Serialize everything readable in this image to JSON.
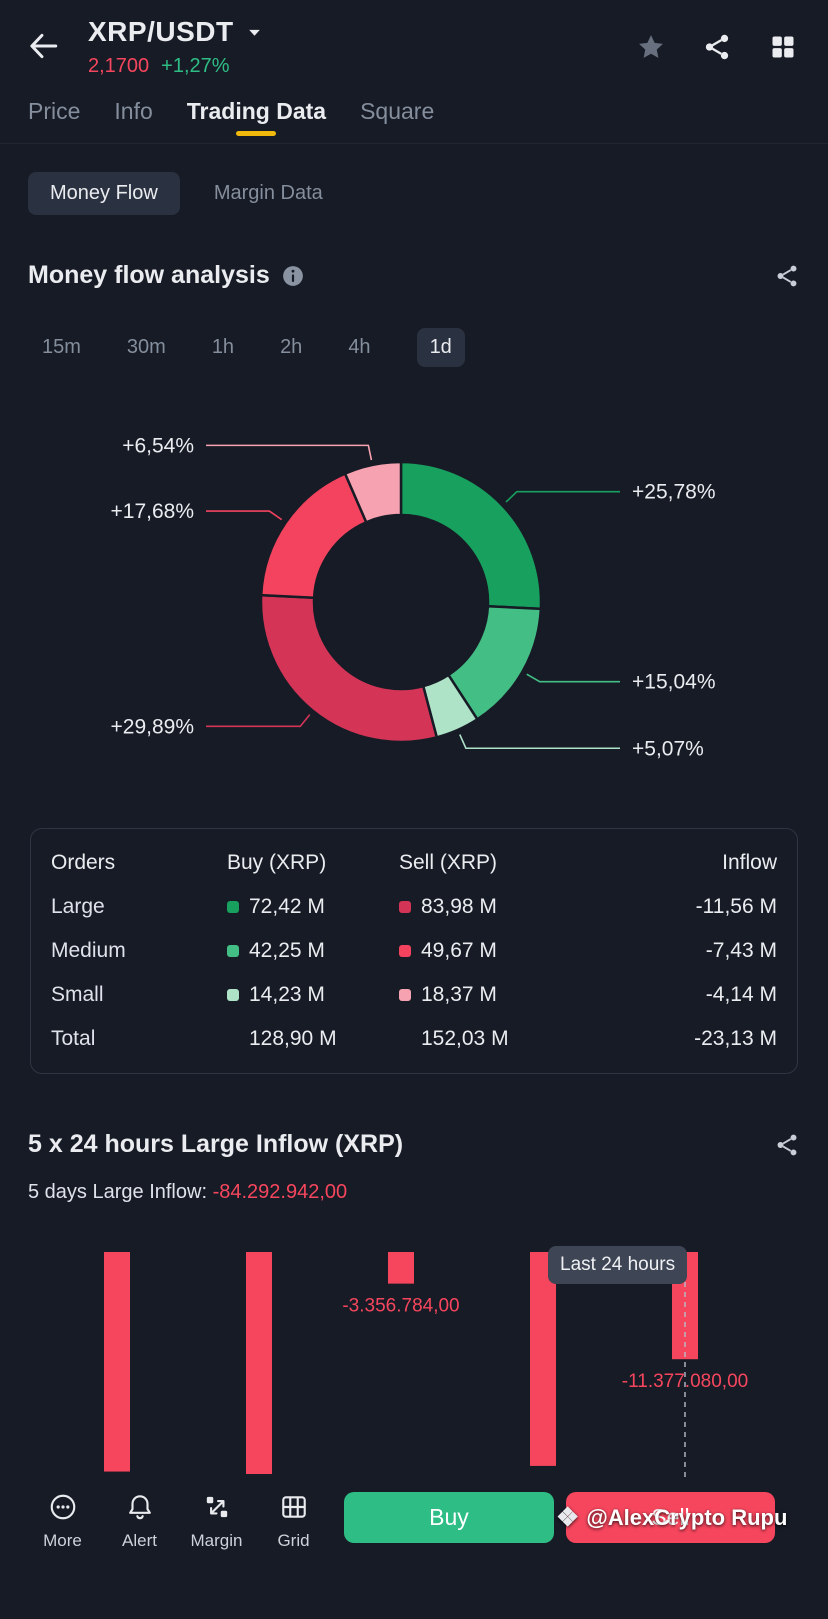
{
  "colors": {
    "background": "#171b26",
    "accent_yellow": "#f0b90b",
    "buy_green": "#2ebd85",
    "sell_red": "#f6465d",
    "buy_large": "#17a05e",
    "buy_medium": "#43bf85",
    "buy_small": "#aee3c8",
    "sell_large": "#d43557",
    "sell_medium": "#f4435f",
    "sell_small": "#f7a2b0"
  },
  "header": {
    "symbol": "XRP/USDT",
    "price": "2,1700",
    "change": "+1,27%"
  },
  "tabs": [
    {
      "label": "Price"
    },
    {
      "label": "Info"
    },
    {
      "label": "Trading Data"
    },
    {
      "label": "Square"
    }
  ],
  "active_tab": "Trading Data",
  "subtabs": [
    {
      "label": "Money Flow"
    },
    {
      "label": "Margin Data"
    }
  ],
  "active_subtab": "Money Flow",
  "money_flow": {
    "title": "Money flow analysis",
    "timeframes": [
      "15m",
      "30m",
      "1h",
      "2h",
      "4h",
      "1d"
    ],
    "active_timeframe": "1d"
  },
  "chart_data": [
    {
      "type": "pie",
      "donut": true,
      "title": "Money flow analysis (1d)",
      "slices": [
        {
          "name": "buy-large",
          "label": "+25,78%",
          "value": 25.78,
          "color": "#17a05e",
          "side": "right"
        },
        {
          "name": "buy-medium",
          "label": "+15,04%",
          "value": 15.04,
          "color": "#43bf85",
          "side": "right"
        },
        {
          "name": "buy-small",
          "label": "+5,07%",
          "value": 5.07,
          "color": "#aee3c8",
          "side": "right"
        },
        {
          "name": "sell-large",
          "label": "+29,89%",
          "value": 29.89,
          "color": "#d43557",
          "side": "left"
        },
        {
          "name": "sell-medium",
          "label": "+17,68%",
          "value": 17.68,
          "color": "#f4435f",
          "side": "left"
        },
        {
          "name": "sell-small",
          "label": "+6,54%",
          "value": 6.54,
          "color": "#f7a2b0",
          "side": "left"
        }
      ],
      "start_angle": 0,
      "legend_position": "callout-labels"
    },
    {
      "type": "bar",
      "title": "5 x 24 hours Large Inflow (XRP)",
      "categories": [
        "day-1",
        "day-2",
        "day-3",
        "day-4",
        "day-5"
      ],
      "values": [
        -23300000,
        -23559078,
        -3356784,
        -22700000,
        -11377080
      ],
      "estimated": [
        true,
        true,
        false,
        true,
        false
      ],
      "value_labels": {
        "2": "-3.356.784,00",
        "4": "-11.377.080,00"
      },
      "total": -84292942.0,
      "total_display": "-84.292.942,00",
      "bar_color": "#f6465d",
      "annotation": "Last 24 hours",
      "annotation_index": 4,
      "baseline": 0,
      "grid": false
    }
  ],
  "orders_table": {
    "headers": [
      "Orders",
      "Buy (XRP)",
      "Sell (XRP)",
      "Inflow"
    ],
    "rows": [
      {
        "name": "Large",
        "buy": "72,42 M",
        "sell": "83,98 M",
        "inflow": "-11,56 M"
      },
      {
        "name": "Medium",
        "buy": "42,25 M",
        "sell": "49,67 M",
        "inflow": "-7,43 M"
      },
      {
        "name": "Small",
        "buy": "14,23 M",
        "sell": "18,37 M",
        "inflow": "-4,14 M"
      },
      {
        "name": "Total",
        "buy": "128,90 M",
        "sell": "152,03 M",
        "inflow": "-23,13 M"
      }
    ]
  },
  "large_inflow": {
    "title": "5 x 24 hours Large Inflow (XRP)",
    "subtitle_label": "5 days Large Inflow:",
    "subtitle_value": "-84.292.942,00",
    "tooltip": "Last 24 hours"
  },
  "bottom_nav": [
    {
      "label": "More",
      "icon": "more-icon"
    },
    {
      "label": "Alert",
      "icon": "bell-icon"
    },
    {
      "label": "Margin",
      "icon": "margin-icon"
    },
    {
      "label": "Grid",
      "icon": "grid-bot-icon"
    }
  ],
  "actions": {
    "buy": "Buy",
    "sell": "Sell"
  },
  "watermark": "@AlexCrypto Rupu"
}
